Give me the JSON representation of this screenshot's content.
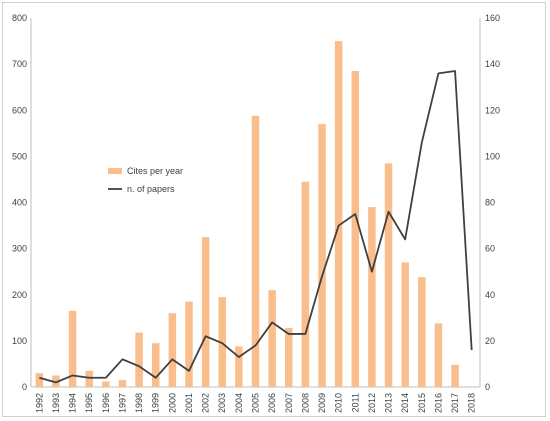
{
  "chart_data": {
    "type": "bar+line",
    "categories": [
      "1992",
      "1993",
      "1994",
      "1995",
      "1996",
      "1997",
      "1998",
      "1999",
      "2000",
      "2001",
      "2002",
      "2003",
      "2004",
      "2005",
      "2006",
      "2007",
      "2008",
      "2009",
      "2010",
      "2011",
      "2012",
      "2013",
      "2014",
      "2015",
      "2016",
      "2017",
      "2018"
    ],
    "series": [
      {
        "name": "Cites per year",
        "type": "bar",
        "axis": "left",
        "color": "#f9be8c",
        "values": [
          30,
          25,
          165,
          35,
          12,
          15,
          118,
          95,
          160,
          185,
          325,
          195,
          88,
          588,
          210,
          128,
          445,
          570,
          750,
          685,
          390,
          485,
          270,
          238,
          138,
          48,
          null
        ]
      },
      {
        "name": "n. of papers",
        "type": "line",
        "axis": "right",
        "color": "#404040",
        "values": [
          4,
          2,
          5,
          4,
          4,
          12,
          9,
          4,
          12,
          7,
          22,
          19,
          13,
          18,
          28,
          23,
          23,
          48,
          70,
          75,
          50,
          76,
          64,
          106,
          136,
          137,
          16
        ]
      }
    ],
    "y_left": {
      "min": 0,
      "max": 800,
      "ticks": [
        "0",
        "100",
        "200",
        "300",
        "400",
        "500",
        "600",
        "700",
        "800"
      ]
    },
    "y_right": {
      "min": 0,
      "max": 160,
      "ticks": [
        "0",
        "20",
        "40",
        "60",
        "80",
        "100",
        "120",
        "140",
        "160"
      ]
    },
    "title": "",
    "xlabel": "",
    "ylabel": "",
    "grid": false,
    "legend_placement": "center-left"
  }
}
